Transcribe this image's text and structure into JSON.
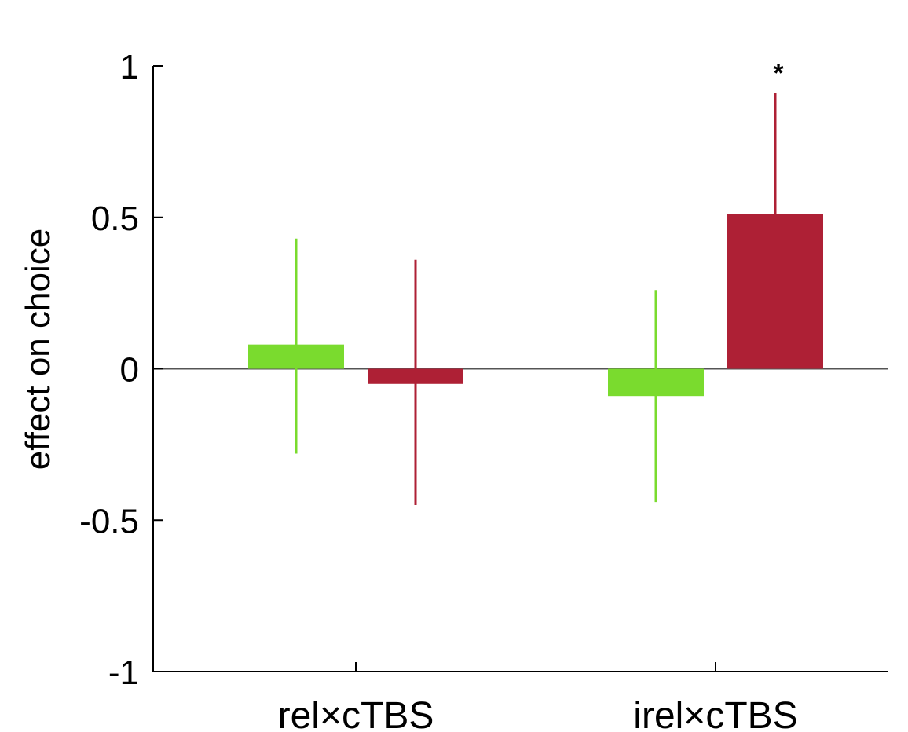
{
  "chart_data": {
    "type": "bar",
    "title": "",
    "xlabel": "",
    "ylabel": "effect on choice",
    "ylim": [
      -1,
      1
    ],
    "yticks": [
      1,
      0.5,
      0,
      -0.5,
      -1
    ],
    "ytick_labels": [
      "1",
      "0.5",
      "0",
      "-0.5",
      "-1"
    ],
    "categories": [
      "rel×cTBS",
      "irel×cTBS"
    ],
    "series": [
      {
        "color": "#7ADB2E",
        "values": [
          0.08,
          -0.09
        ],
        "err_low": [
          -0.28,
          -0.44
        ],
        "err_high": [
          0.43,
          0.26
        ]
      },
      {
        "color": "#AE2035",
        "values": [
          -0.05,
          0.51
        ],
        "err_low": [
          -0.45,
          0.51
        ],
        "err_high": [
          0.36,
          0.91
        ]
      }
    ],
    "annotations": [
      {
        "category": 1,
        "series": 1,
        "text": "*"
      }
    ],
    "grid": false,
    "legend": "none"
  }
}
